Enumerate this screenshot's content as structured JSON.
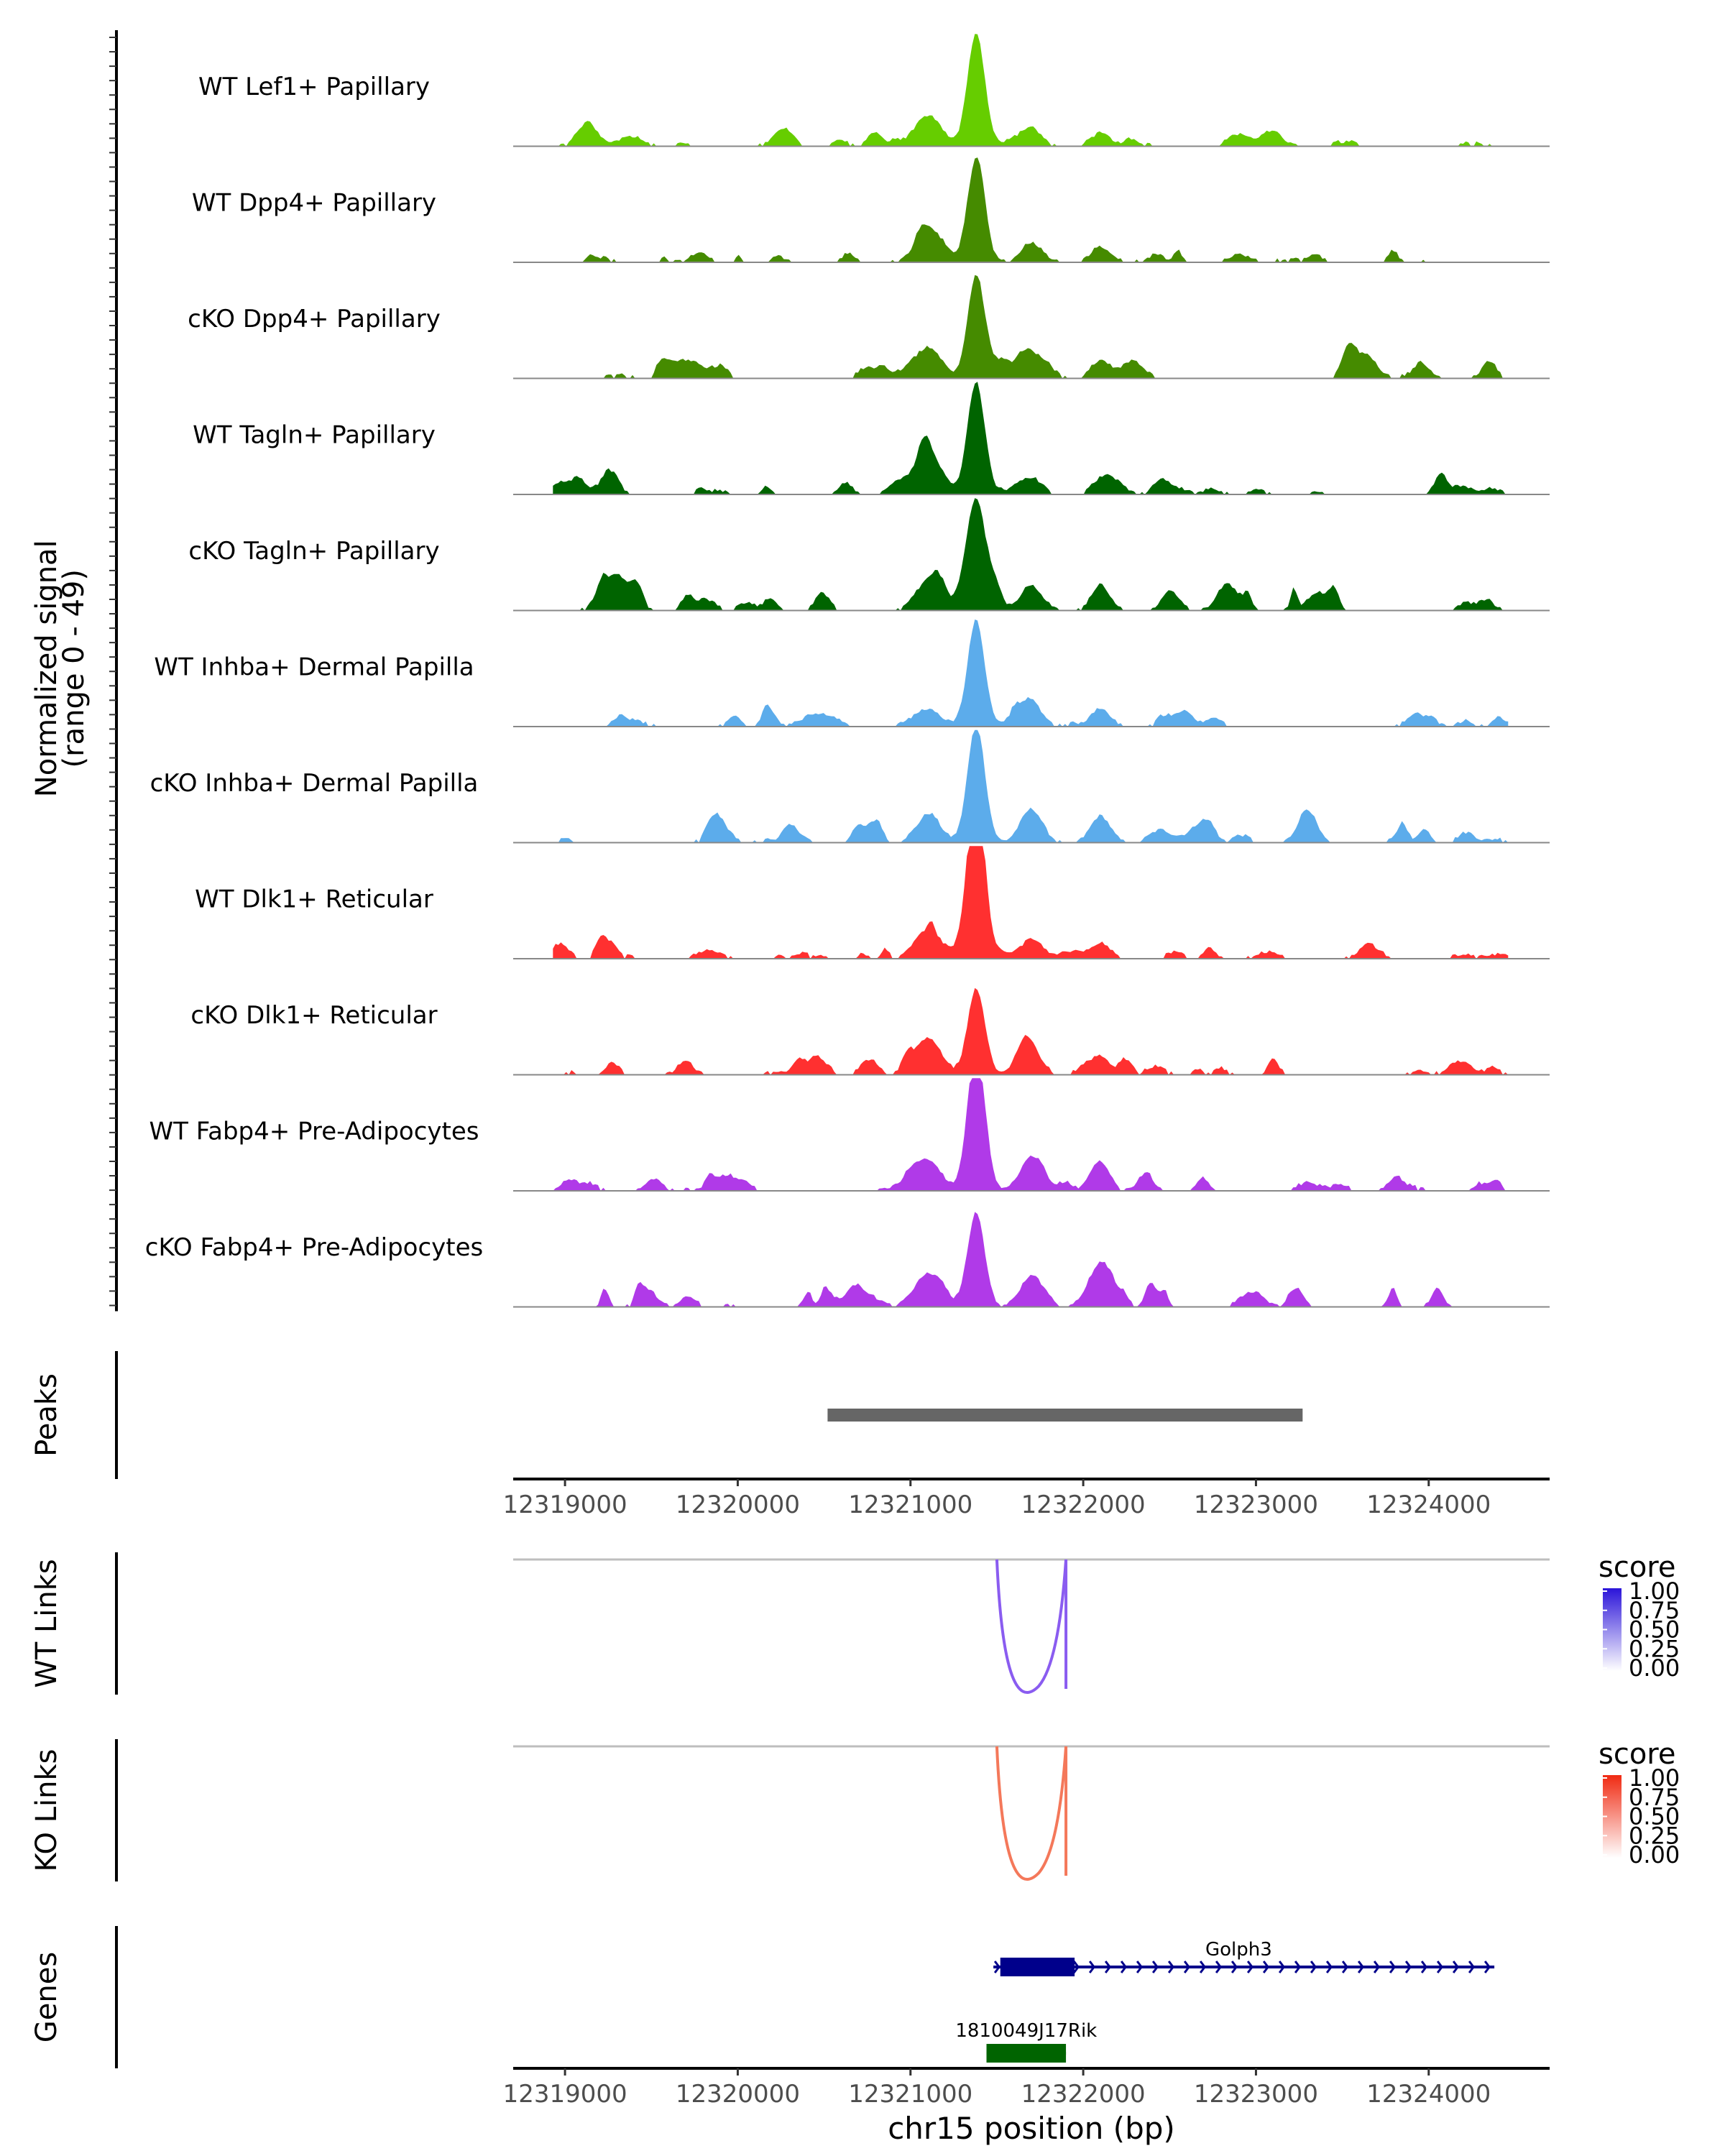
{
  "chart_data": {
    "type": "area",
    "title": "",
    "xlabel": "chr15 position (bp)",
    "x_range": [
      12318700,
      12324700
    ],
    "x_ticks": [
      "12319000",
      "12320000",
      "12321000",
      "12322000",
      "12323000",
      "12324000"
    ],
    "x_tick_values": [
      12319000,
      12320000,
      12321000,
      12322000,
      12323000,
      12324000
    ],
    "coverage": {
      "ylabel_line1": "Normalized signal",
      "ylabel_line2": "(range 0 - 49)",
      "y_range": [
        0,
        49
      ],
      "tracks": [
        {
          "name": "WT Lef1+ Papillary",
          "color": "#66cd00",
          "peak": 1.0,
          "bg": 0.12,
          "left": 0.55,
          "right": 0.3,
          "seed": 3
        },
        {
          "name": "WT Dpp4+ Papillary",
          "color": "#458b00",
          "peak": 0.92,
          "bg": 0.1,
          "left": 0.45,
          "right": 0.35,
          "seed": 7
        },
        {
          "name": "cKO Dpp4+ Papillary",
          "color": "#458b00",
          "peak": 0.8,
          "bg": 0.18,
          "left": 0.55,
          "right": 0.4,
          "seed": 11
        },
        {
          "name": "WT Tagln+ Papillary",
          "color": "#006400",
          "peak": 1.0,
          "bg": 0.16,
          "left": 0.75,
          "right": 0.3,
          "seed": 13
        },
        {
          "name": "cKO Tagln+ Papillary",
          "color": "#006400",
          "peak": 0.78,
          "bg": 0.2,
          "left": 0.5,
          "right": 0.45,
          "seed": 17
        },
        {
          "name": "WT Inhba+ Dermal Papilla",
          "color": "#5caceb",
          "peak": 0.95,
          "bg": 0.12,
          "left": 0.3,
          "right": 0.4,
          "seed": 19
        },
        {
          "name": "cKO Inhba+ Dermal Papilla",
          "color": "#5caceb",
          "peak": 0.95,
          "bg": 0.18,
          "left": 0.35,
          "right": 0.6,
          "seed": 23
        },
        {
          "name": "WT Dlk1+ Reticular",
          "color": "#ff3030",
          "peak": 1.55,
          "bg": 0.12,
          "left": 0.5,
          "right": 0.35,
          "seed": 29
        },
        {
          "name": "cKO Dlk1+ Reticular",
          "color": "#ff3030",
          "peak": 0.75,
          "bg": 0.18,
          "left": 0.65,
          "right": 0.4,
          "seed": 31
        },
        {
          "name": "WT Fabp4+ Pre-Adipocytes",
          "color": "#b03ae8",
          "peak": 1.3,
          "bg": 0.14,
          "left": 0.55,
          "right": 0.6,
          "seed": 37
        },
        {
          "name": "cKO Fabp4+ Pre-Adipocytes",
          "color": "#b03ae8",
          "peak": 0.85,
          "bg": 0.2,
          "left": 0.6,
          "right": 0.55,
          "seed": 41
        }
      ]
    },
    "peaks": {
      "label": "Peaks",
      "regions": [
        {
          "start": 12320520,
          "end": 12323270
        }
      ],
      "color": "#666666"
    },
    "links": [
      {
        "label": "WT Links",
        "start": 12321500,
        "end": 12321900,
        "score": 0.72,
        "color": "#8a5cf0",
        "legend_title": "score",
        "legend_low": "#ffffff",
        "legend_high": "#2b14d9",
        "legend_ticks": [
          "1.00",
          "0.75",
          "0.50",
          "0.25",
          "0.00"
        ]
      },
      {
        "label": "KO Links",
        "start": 12321500,
        "end": 12321900,
        "score": 0.7,
        "color": "#f4785a",
        "legend_title": "score",
        "legend_low": "#ffffff",
        "legend_high": "#f02a12",
        "legend_ticks": [
          "1.00",
          "0.75",
          "0.50",
          "0.25",
          "0.00"
        ]
      }
    ],
    "genes": {
      "label": "Genes",
      "items": [
        {
          "name": "Golph3",
          "start": 12321480,
          "end": 12324380,
          "cds_start": 12321520,
          "cds_end": 12321950,
          "strand": "+",
          "color": "#00008b",
          "row": 0
        },
        {
          "name": "1810049J17Rik",
          "start": 12321440,
          "end": 12321900,
          "cds_start": 12321440,
          "cds_end": 12321900,
          "strand": "-",
          "color": "#006400",
          "row": 1
        }
      ]
    }
  }
}
